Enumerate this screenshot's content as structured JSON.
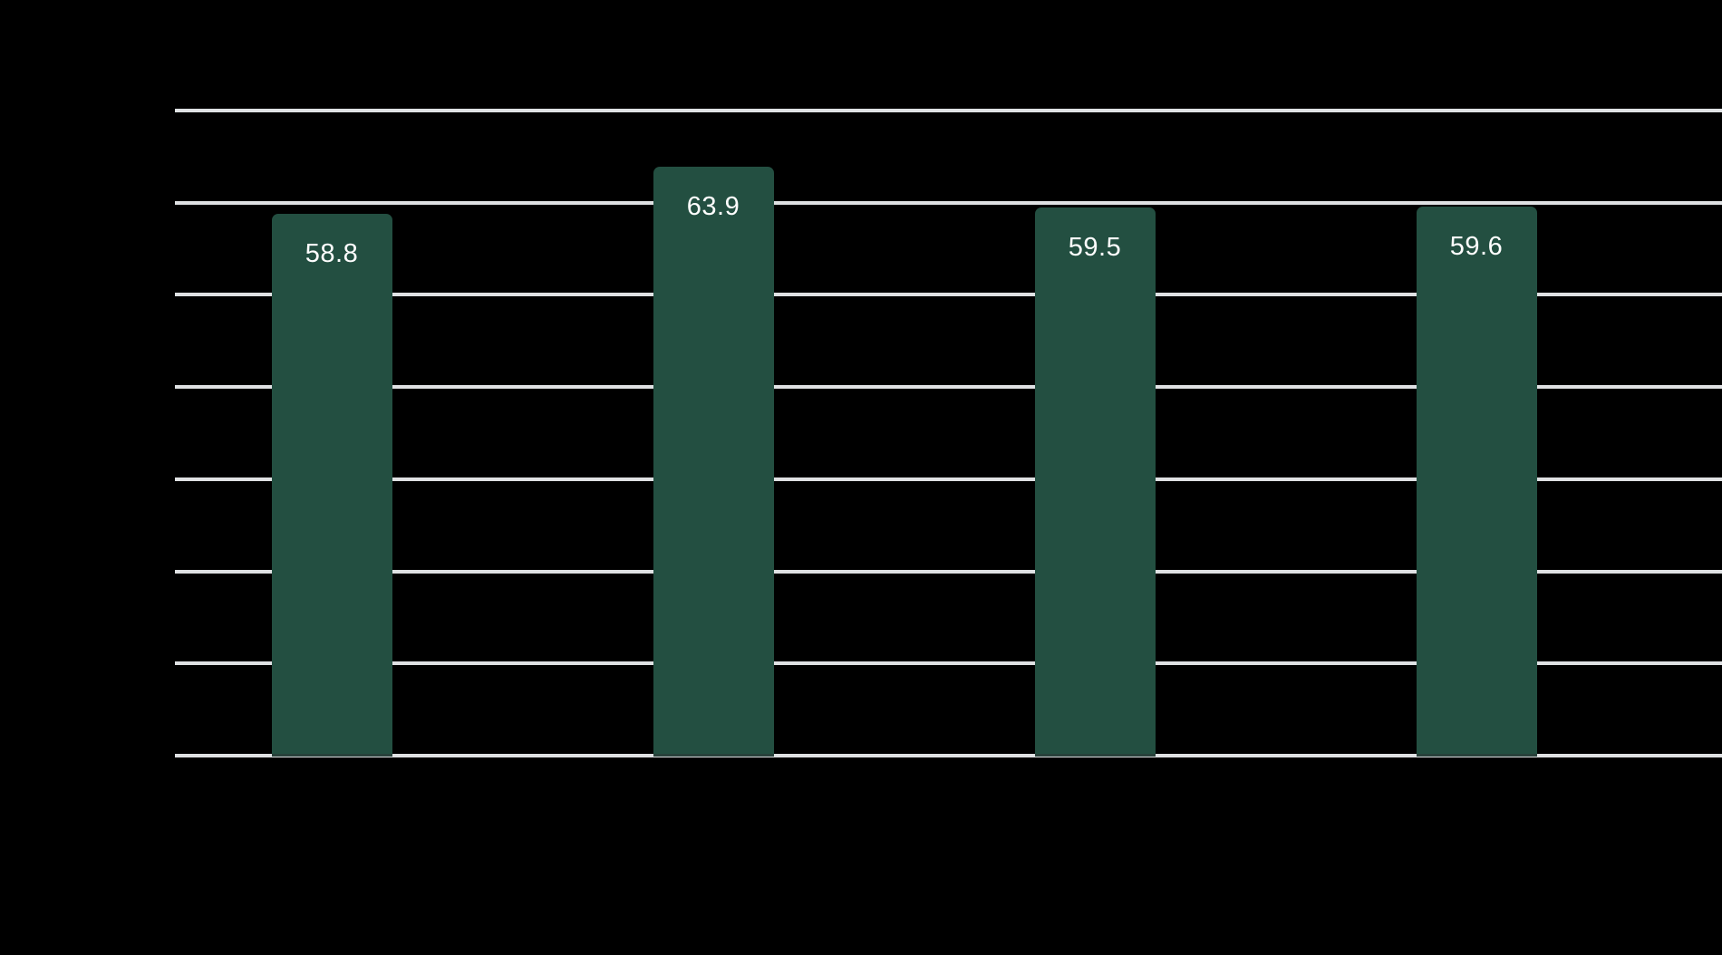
{
  "chart_data": {
    "type": "bar",
    "series": [
      {
        "name": "values",
        "values": [
          58.8,
          63.9,
          59.5,
          59.6
        ]
      }
    ],
    "value_labels": [
      "58.8",
      "63.9",
      "59.5",
      "59.6"
    ],
    "ylim": [
      0,
      70
    ],
    "y_gridline_step": 10,
    "grid": "horizontal-only",
    "legend": "none",
    "axis_tick_labels_visible": false,
    "title_visible": false
  },
  "style": {
    "background_color": "#000000",
    "bar_color": "#234F41",
    "gridline_color": "#DFE1E3",
    "value_label_color": "#FFFFFF"
  }
}
